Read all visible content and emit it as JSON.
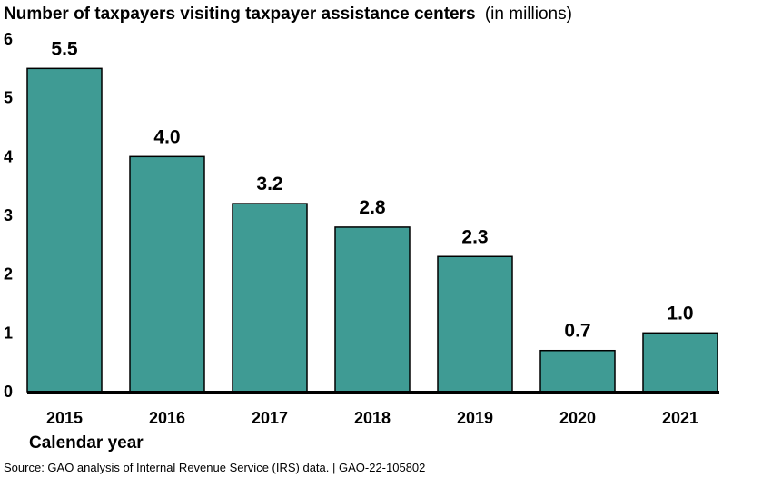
{
  "chart_data": {
    "type": "bar",
    "title": "Number of taxpayers visiting taxpayer assistance centers",
    "title_unit": "(in millions)",
    "xlabel": "Calendar year",
    "ylabel": "",
    "categories": [
      "2015",
      "2016",
      "2017",
      "2018",
      "2019",
      "2020",
      "2021"
    ],
    "values": [
      5.5,
      4.0,
      3.2,
      2.8,
      2.3,
      0.7,
      1.0
    ],
    "value_labels": [
      "5.5",
      "4.0",
      "3.2",
      "2.8",
      "2.3",
      "0.7",
      "1.0"
    ],
    "ylim": [
      0,
      6
    ],
    "yticks": [
      "0",
      "1",
      "2",
      "3",
      "4",
      "5",
      "6"
    ],
    "grid": false,
    "legend": "none",
    "bar_color": "#3f9b94",
    "bar_edge_color": "#000000"
  },
  "source": "Source: GAO analysis of Internal Revenue Service (IRS) data.  |  GAO-22-105802"
}
